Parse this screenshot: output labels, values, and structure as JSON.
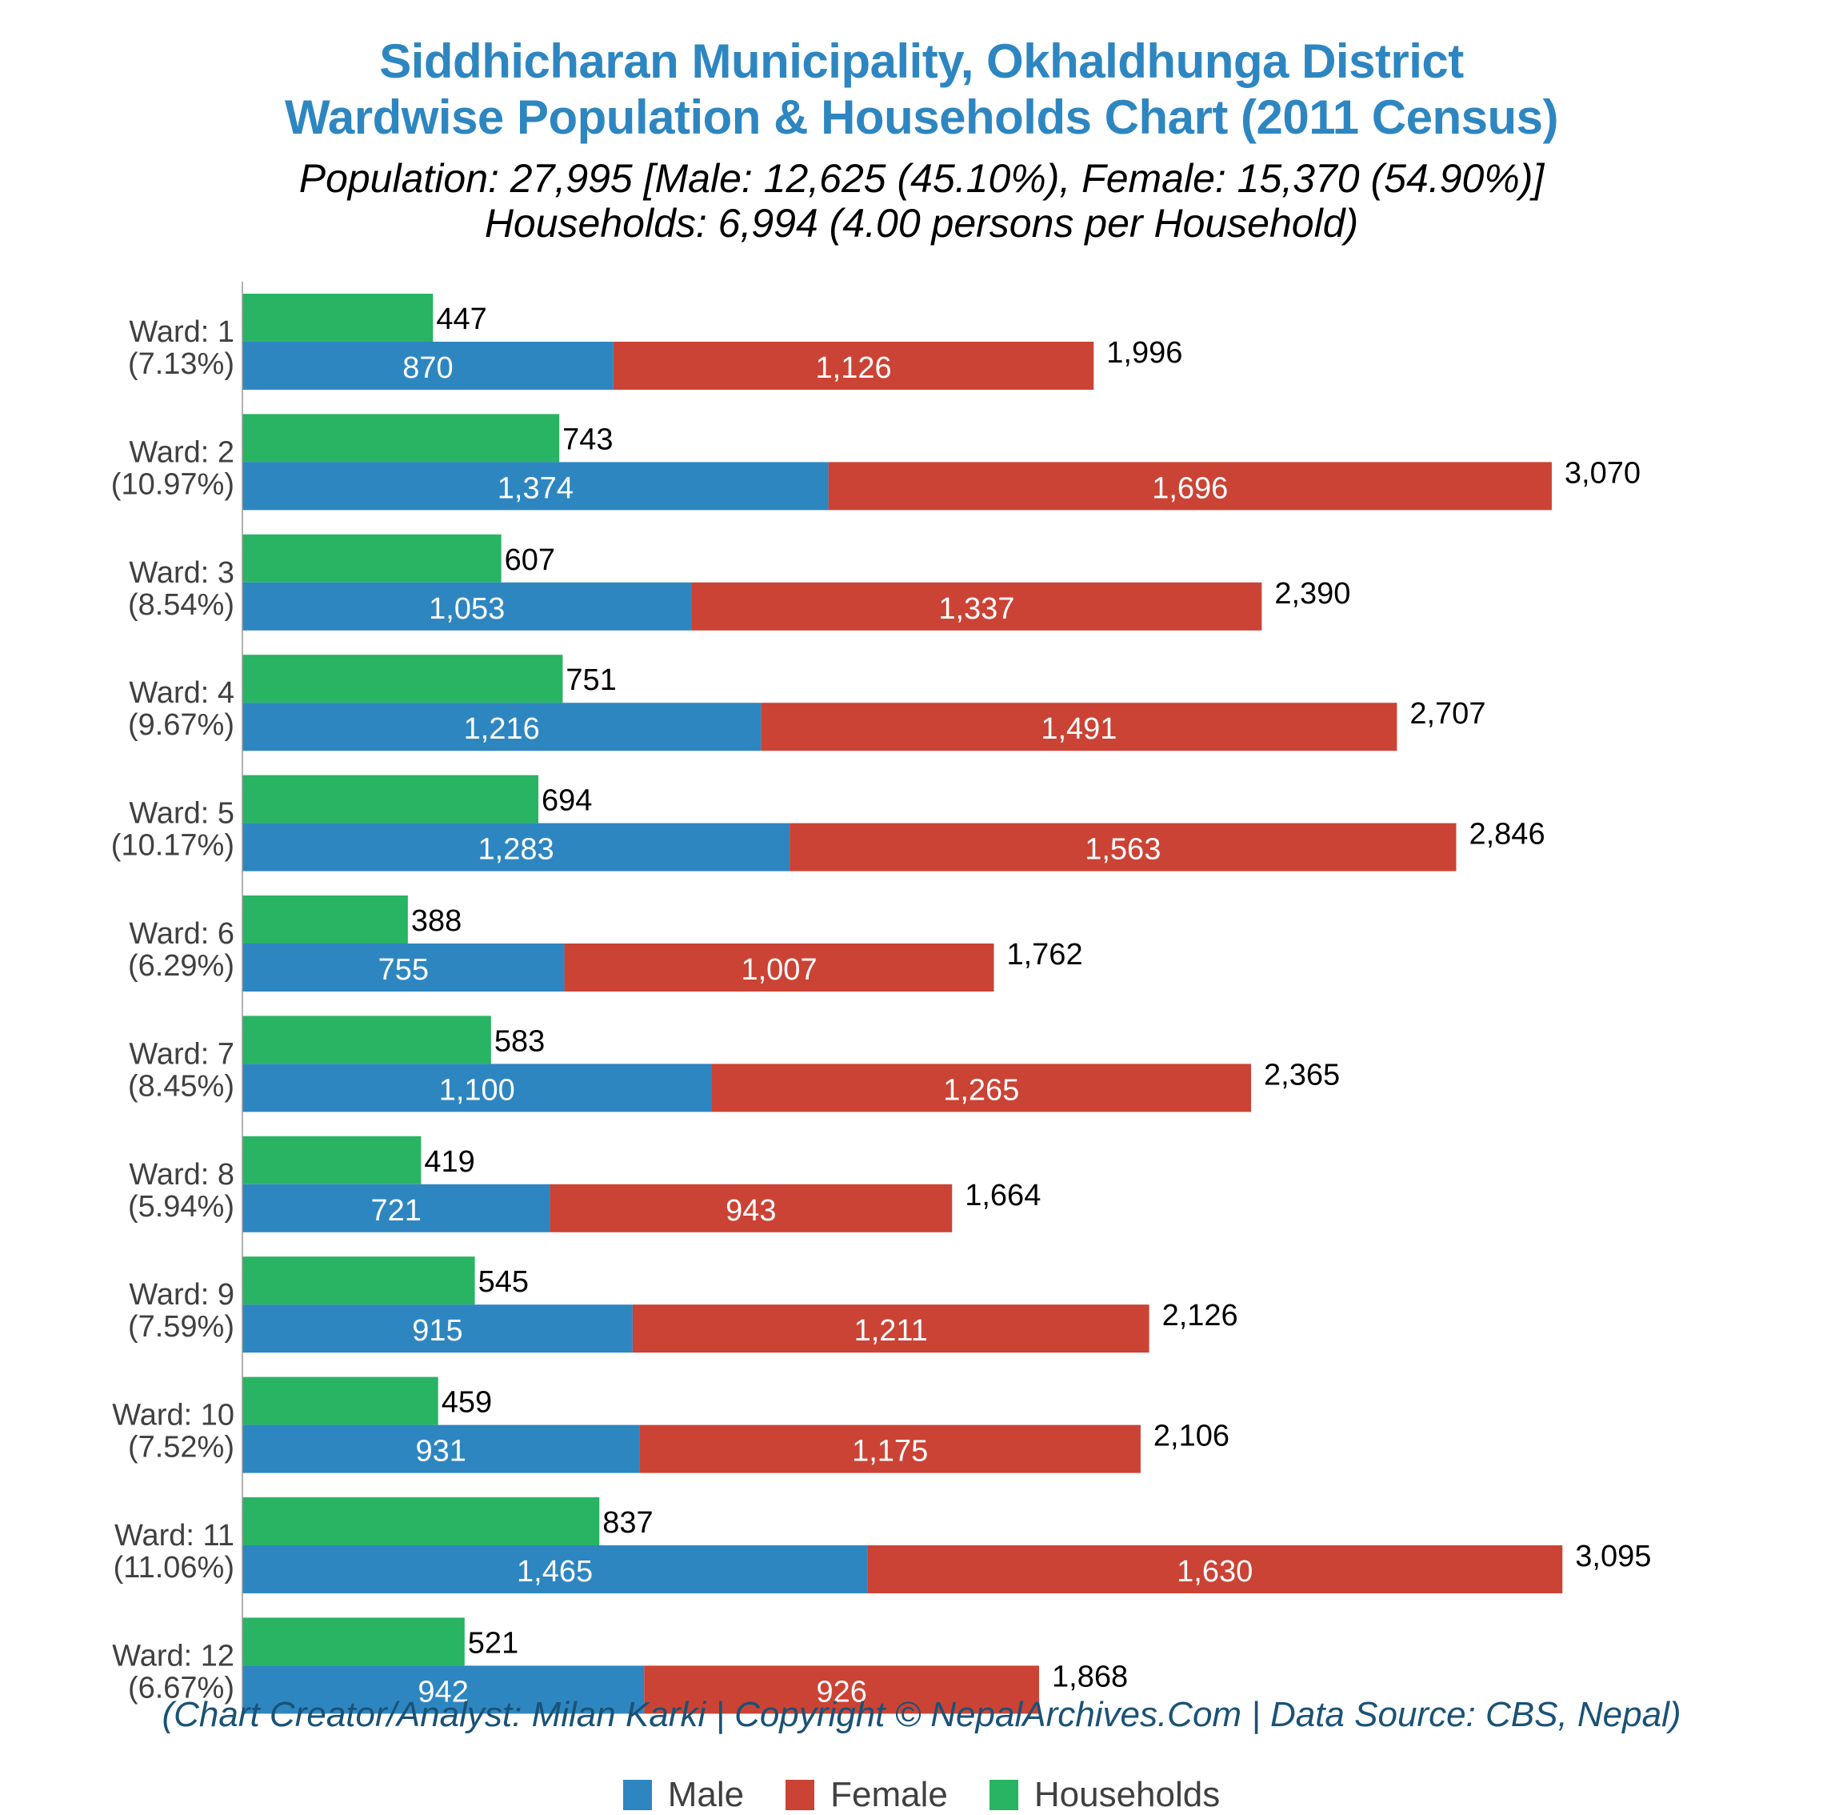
{
  "chart_data": {
    "type": "bar",
    "orientation": "horizontal",
    "stacked_series": [
      "Male",
      "Female"
    ],
    "title": "Siddhicharan Municipality, Okhaldhunga District",
    "title_line2": "Wardwise Population & Households Chart (2011 Census)",
    "subtitle_line1": "Population: 27,995 [Male: 12,625 (45.10%), Female: 15,370 (54.90%)]",
    "subtitle_line2": "Households: 6,994 (4.00 persons per Household)",
    "categories": [
      "Ward: 1",
      "Ward: 2",
      "Ward: 3",
      "Ward: 4",
      "Ward: 5",
      "Ward: 6",
      "Ward: 7",
      "Ward: 8",
      "Ward: 9",
      "Ward: 10",
      "Ward: 11",
      "Ward: 12"
    ],
    "category_percent": [
      "(7.13%)",
      "(10.97%)",
      "(8.54%)",
      "(9.67%)",
      "(10.17%)",
      "(6.29%)",
      "(8.45%)",
      "(5.94%)",
      "(7.59%)",
      "(7.52%)",
      "(11.06%)",
      "(6.67%)"
    ],
    "series": [
      {
        "name": "Male",
        "color": "#2E86C1",
        "values": [
          870,
          1374,
          1053,
          1216,
          1283,
          755,
          1100,
          721,
          915,
          931,
          1465,
          942
        ]
      },
      {
        "name": "Female",
        "color": "#CB4335",
        "values": [
          1126,
          1696,
          1337,
          1491,
          1563,
          1007,
          1265,
          943,
          1211,
          1175,
          1630,
          926
        ]
      },
      {
        "name": "Households",
        "color": "#28B463",
        "values": [
          447,
          743,
          607,
          751,
          694,
          388,
          583,
          419,
          545,
          459,
          837,
          521
        ]
      }
    ],
    "totals": [
      1996,
      3070,
      2390,
      2707,
      2846,
      1762,
      2365,
      1664,
      2126,
      2106,
      3095,
      1868
    ],
    "xlabel": "",
    "ylabel": "",
    "xlim": [
      0,
      3095
    ],
    "grid": false,
    "legend_position": "bottom-center",
    "footer": "(Chart Creator/Analyst: Milan Karki | Copyright © NepalArchives.Com | Data Source: CBS, Nepal)"
  }
}
